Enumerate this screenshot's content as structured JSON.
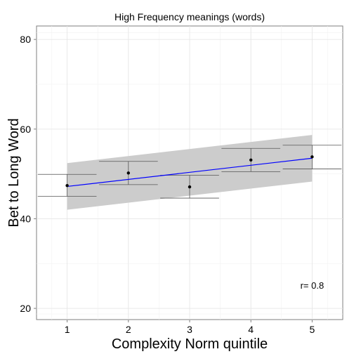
{
  "chart_data": {
    "type": "scatter",
    "title": "High Frequency meanings (words)",
    "xlabel": "Complexity Norm quintile",
    "ylabel": "Bet to Long Word",
    "xlim": [
      0.5,
      5.5
    ],
    "ylim": [
      17.5,
      83.0
    ],
    "x_ticks": [
      1,
      2,
      3,
      4,
      5
    ],
    "y_ticks": [
      20,
      40,
      60,
      80
    ],
    "grid": true,
    "points": [
      {
        "x": 1,
        "y": 47.4,
        "ymin": 45.0,
        "ymax": 49.9
      },
      {
        "x": 2,
        "y": 50.2,
        "ymin": 47.6,
        "ymax": 52.8
      },
      {
        "x": 3,
        "y": 47.1,
        "ymin": 44.6,
        "ymax": 49.7
      },
      {
        "x": 4,
        "y": 53.1,
        "ymin": 50.5,
        "ymax": 55.7
      },
      {
        "x": 5,
        "y": 53.8,
        "ymin": 51.1,
        "ymax": 56.4
      }
    ],
    "regression": {
      "x": [
        1,
        5
      ],
      "y": [
        47.2,
        53.5
      ],
      "ci_lower": [
        42.0,
        48.3
      ],
      "ci_upper": [
        52.4,
        58.7
      ],
      "color": "#0000ff"
    },
    "annotation": "r= 0.8"
  }
}
